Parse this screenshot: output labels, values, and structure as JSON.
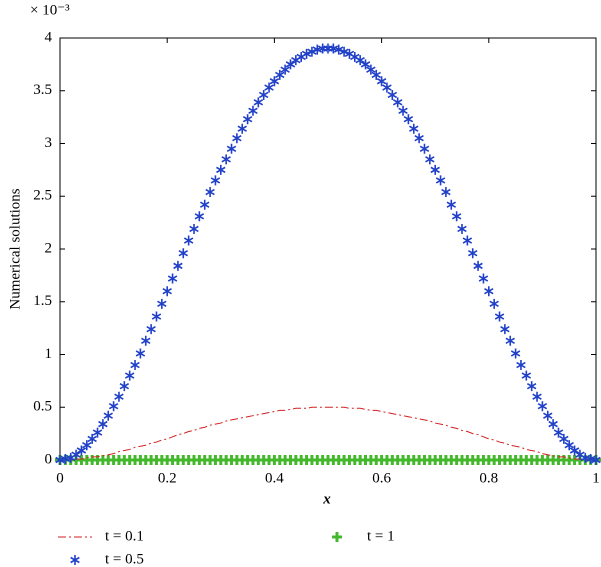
{
  "chart_data": {
    "type": "line",
    "y_multiplier": "× 10⁻³",
    "xlabel": "x",
    "ylabel": "Numerical solutions",
    "xlim": [
      0,
      1
    ],
    "ylim": [
      0,
      4
    ],
    "xticks": [
      0,
      0.2,
      0.4,
      0.6,
      0.8,
      1
    ],
    "yticks": [
      0,
      0.5,
      1,
      1.5,
      2,
      2.5,
      3,
      3.5,
      4
    ],
    "legend": "bottom",
    "x": [
      0,
      0.01,
      0.02,
      0.03,
      0.04,
      0.05,
      0.06,
      0.07,
      0.08,
      0.09,
      0.1,
      0.11,
      0.12,
      0.13,
      0.14,
      0.15,
      0.16,
      0.17,
      0.18,
      0.19,
      0.2,
      0.21,
      0.22,
      0.23,
      0.24,
      0.25,
      0.26,
      0.27,
      0.28,
      0.29,
      0.3,
      0.31,
      0.32,
      0.33,
      0.34,
      0.35,
      0.36,
      0.37,
      0.38,
      0.39,
      0.4,
      0.41,
      0.42,
      0.43,
      0.44,
      0.45,
      0.46,
      0.47,
      0.48,
      0.49,
      0.5,
      0.51,
      0.52,
      0.53,
      0.54,
      0.55,
      0.56,
      0.57,
      0.58,
      0.59,
      0.6,
      0.61,
      0.62,
      0.63,
      0.64,
      0.65,
      0.66,
      0.67,
      0.68,
      0.69,
      0.7,
      0.71,
      0.72,
      0.73,
      0.74,
      0.75,
      0.76,
      0.77,
      0.78,
      0.79,
      0.8,
      0.81,
      0.82,
      0.83,
      0.84,
      0.85,
      0.86,
      0.87,
      0.88,
      0.89,
      0.9,
      0.91,
      0.92,
      0.93,
      0.94,
      0.95,
      0.96,
      0.97,
      0.98,
      0.99,
      1
    ],
    "series": [
      {
        "name": "t = 0.1",
        "color": "#d22020",
        "style": "dashdot",
        "values": [
          0,
          0,
          0,
          0.01,
          0.01,
          0.02,
          0.03,
          0.03,
          0.04,
          0.05,
          0.06,
          0.08,
          0.09,
          0.1,
          0.12,
          0.13,
          0.14,
          0.16,
          0.17,
          0.19,
          0.2,
          0.22,
          0.24,
          0.25,
          0.27,
          0.28,
          0.3,
          0.31,
          0.33,
          0.34,
          0.35,
          0.37,
          0.38,
          0.39,
          0.4,
          0.41,
          0.42,
          0.43,
          0.44,
          0.45,
          0.46,
          0.47,
          0.47,
          0.48,
          0.49,
          0.49,
          0.49,
          0.5,
          0.5,
          0.5,
          0.5,
          0.5,
          0.5,
          0.5,
          0.49,
          0.49,
          0.49,
          0.48,
          0.47,
          0.47,
          0.46,
          0.45,
          0.44,
          0.43,
          0.42,
          0.41,
          0.4,
          0.39,
          0.38,
          0.37,
          0.35,
          0.34,
          0.33,
          0.31,
          0.3,
          0.28,
          0.27,
          0.25,
          0.24,
          0.22,
          0.2,
          0.19,
          0.17,
          0.16,
          0.14,
          0.13,
          0.12,
          0.1,
          0.09,
          0.08,
          0.06,
          0.05,
          0.04,
          0.03,
          0.03,
          0.02,
          0.01,
          0.01,
          0,
          0,
          0
        ]
      },
      {
        "name": "t = 0.5",
        "color": "#2040c8",
        "style": "star",
        "values": [
          0,
          0.01,
          0.02,
          0.05,
          0.09,
          0.14,
          0.2,
          0.26,
          0.34,
          0.42,
          0.51,
          0.6,
          0.7,
          0.8,
          0.9,
          1.01,
          1.13,
          1.24,
          1.36,
          1.48,
          1.6,
          1.72,
          1.84,
          1.96,
          2.08,
          2.19,
          2.31,
          2.42,
          2.54,
          2.65,
          2.75,
          2.85,
          2.95,
          3.05,
          3.14,
          3.23,
          3.31,
          3.39,
          3.46,
          3.53,
          3.59,
          3.65,
          3.7,
          3.75,
          3.79,
          3.82,
          3.85,
          3.87,
          3.89,
          3.9,
          3.9,
          3.9,
          3.89,
          3.87,
          3.85,
          3.82,
          3.79,
          3.75,
          3.7,
          3.65,
          3.59,
          3.53,
          3.46,
          3.39,
          3.31,
          3.23,
          3.14,
          3.05,
          2.95,
          2.85,
          2.75,
          2.65,
          2.54,
          2.42,
          2.31,
          2.19,
          2.08,
          1.96,
          1.84,
          1.72,
          1.6,
          1.48,
          1.36,
          1.24,
          1.13,
          1.01,
          0.9,
          0.8,
          0.7,
          0.6,
          0.51,
          0.42,
          0.34,
          0.26,
          0.2,
          0.14,
          0.09,
          0.05,
          0.02,
          0.01,
          0
        ]
      },
      {
        "name": "t = 1",
        "color": "#44b82c",
        "style": "plus",
        "values": [
          0,
          0,
          0,
          0,
          0,
          0,
          0,
          0,
          0,
          0,
          0,
          0,
          0,
          0,
          0,
          0,
          0,
          0,
          0,
          0,
          0,
          0,
          0,
          0,
          0,
          0,
          0,
          0,
          0,
          0,
          0,
          0,
          0,
          0,
          0,
          0,
          0,
          0,
          0,
          0,
          0,
          0,
          0,
          0,
          0,
          0,
          0,
          0,
          0,
          0,
          0,
          0,
          0,
          0,
          0,
          0,
          0,
          0,
          0,
          0,
          0,
          0,
          0,
          0,
          0,
          0,
          0,
          0,
          0,
          0,
          0,
          0,
          0,
          0,
          0,
          0,
          0,
          0,
          0,
          0,
          0,
          0,
          0,
          0,
          0,
          0,
          0,
          0,
          0,
          0,
          0,
          0,
          0,
          0,
          0,
          0,
          0,
          0,
          0,
          0,
          0
        ]
      }
    ]
  }
}
